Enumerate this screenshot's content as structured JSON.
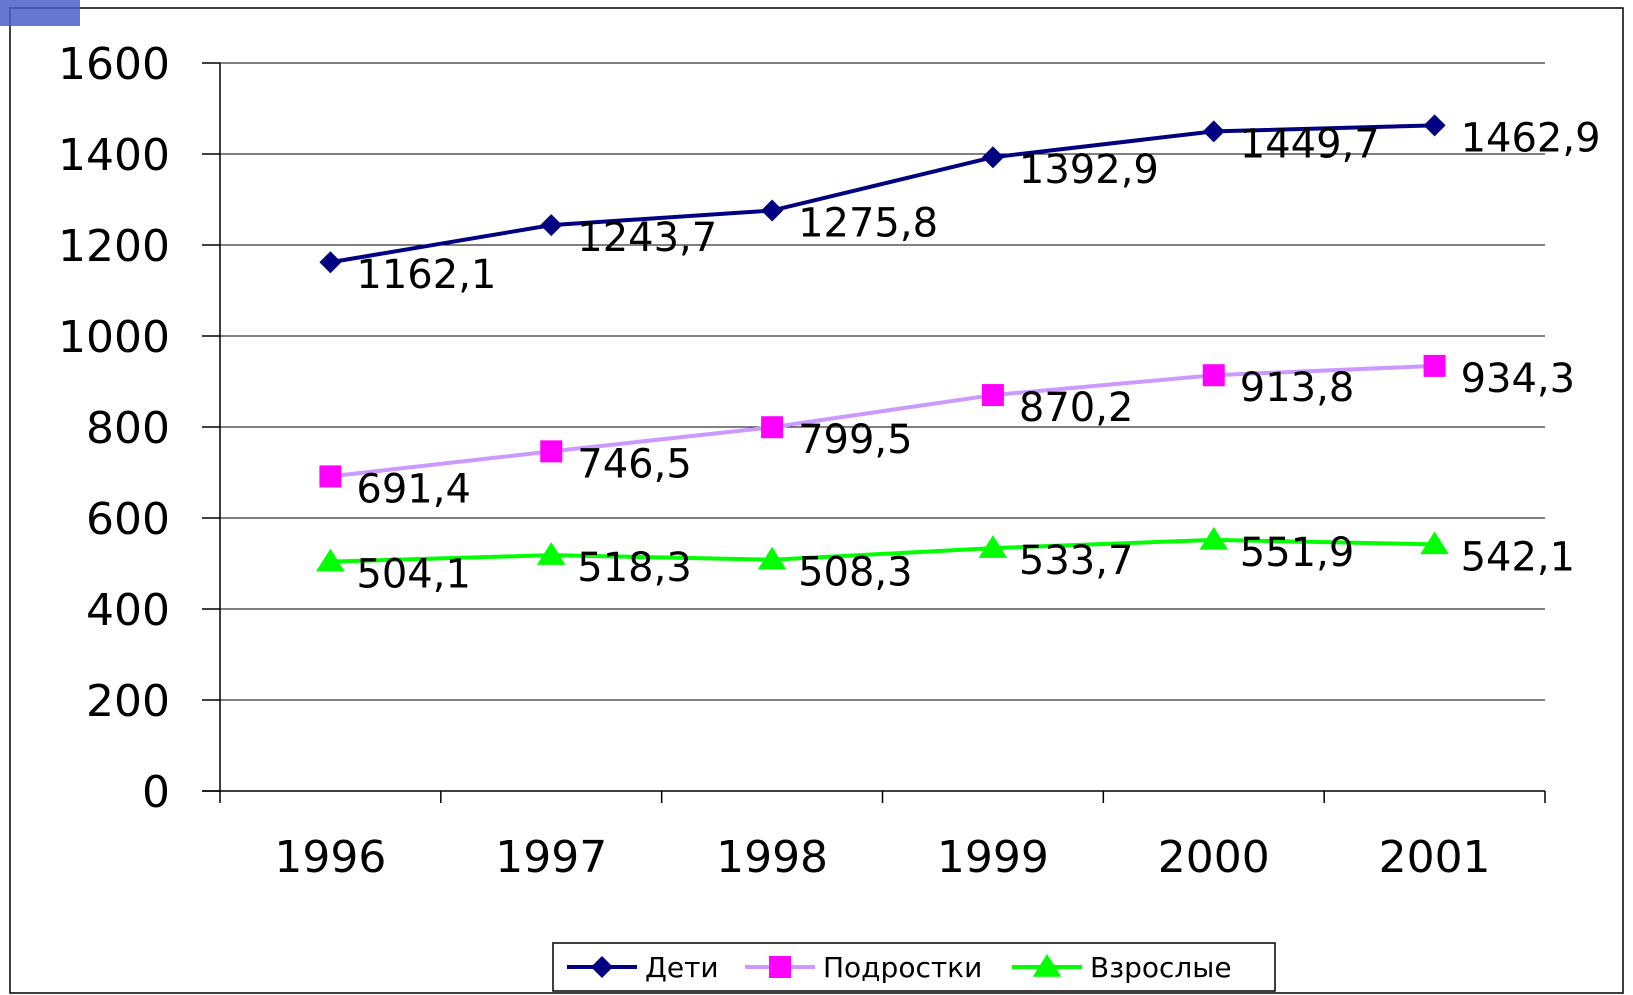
{
  "chart_data": {
    "type": "line",
    "title": "",
    "xlabel": "",
    "ylabel": "",
    "categories": [
      "1996",
      "1997",
      "1998",
      "1999",
      "2000",
      "2001"
    ],
    "ylim": [
      0,
      1600
    ],
    "yticks": [
      "0",
      "200",
      "400",
      "600",
      "800",
      "1000",
      "1200",
      "1400",
      "1600"
    ],
    "grid": true,
    "legend_position": "bottom",
    "series": [
      {
        "name": "Дети",
        "values": [
          1162.1,
          1243.7,
          1275.8,
          1392.9,
          1449.7,
          1462.9
        ],
        "labels": [
          "1162,1",
          "1243,7",
          "1275,8",
          "1392,9",
          "1449,7",
          "1462,9"
        ],
        "color": "#000080",
        "marker": "diamond"
      },
      {
        "name": "Подростки",
        "values": [
          691.4,
          746.5,
          799.5,
          870.2,
          913.8,
          934.3
        ],
        "labels": [
          "691,4",
          "746,5",
          "799,5",
          "870,2",
          "913,8",
          "934,3"
        ],
        "color": "#CC99FF",
        "marker_color": "#FF00FF",
        "marker": "square"
      },
      {
        "name": "Взрослые",
        "values": [
          504.1,
          518.3,
          508.3,
          533.7,
          551.9,
          542.1
        ],
        "labels": [
          "504,1",
          "518,3",
          "508,3",
          "533,7",
          "551,9",
          "542,1"
        ],
        "color": "#00FF00",
        "marker": "triangle"
      }
    ]
  }
}
